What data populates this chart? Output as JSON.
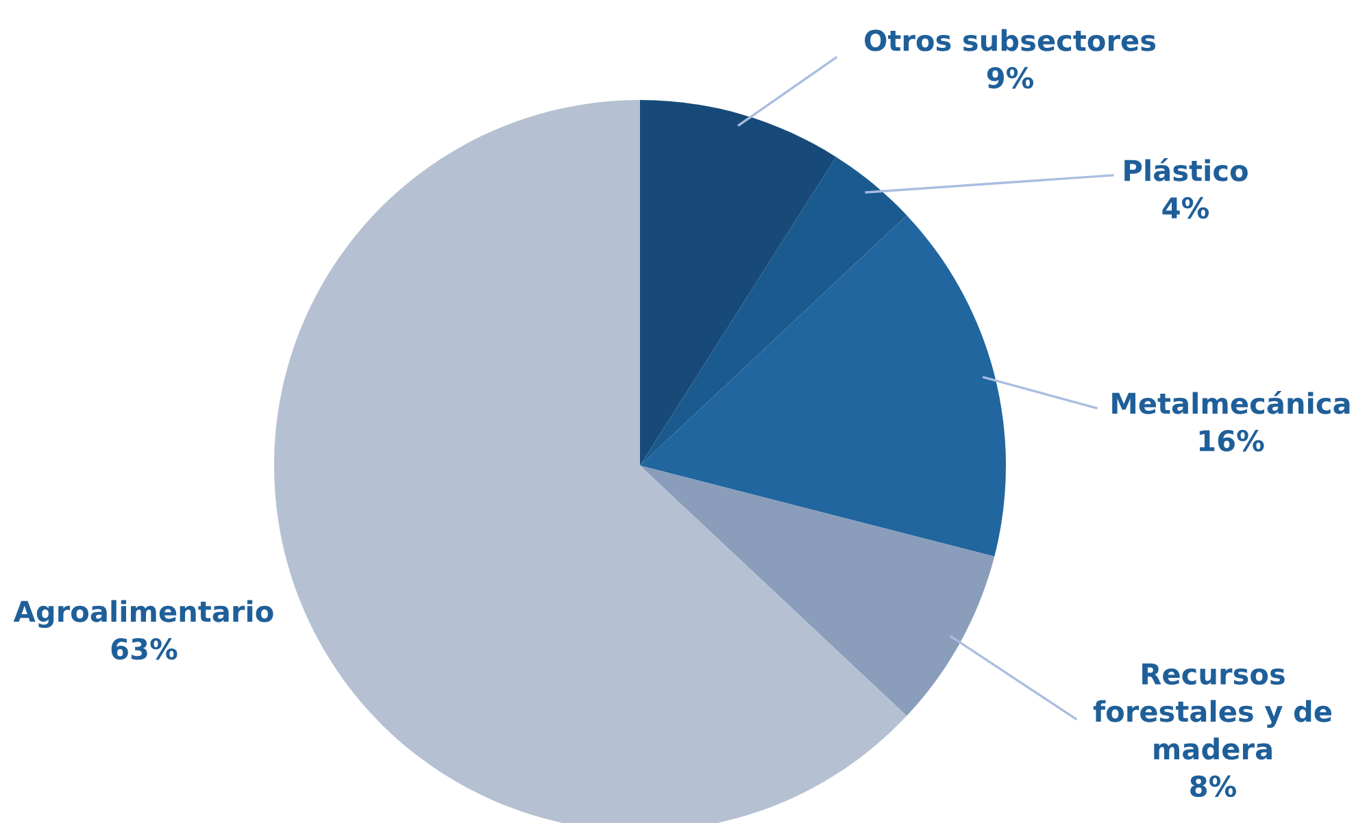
{
  "chart_data": {
    "type": "pie",
    "categories": [
      "Otros subsectores",
      "Plástico",
      "Metalmecánica",
      "Recursos\nforestales y de\nmadera",
      "Agroalimentario"
    ],
    "values": [
      9,
      4,
      16,
      8,
      63
    ],
    "colors": [
      "#174a78",
      "#1b5a8e",
      "#21669e",
      "#8a9dbb",
      "#b5c1d2"
    ],
    "value_labels": [
      "9%",
      "4%",
      "16%",
      "8%",
      "63%"
    ]
  }
}
